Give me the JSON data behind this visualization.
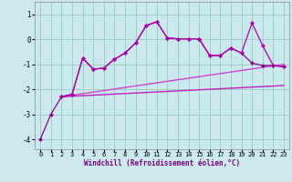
{
  "xlabel": "Windchill (Refroidissement éolien,°C)",
  "xlim": [
    -0.5,
    23.5
  ],
  "ylim": [
    -4.4,
    1.5
  ],
  "xticks": [
    0,
    1,
    2,
    3,
    4,
    5,
    6,
    7,
    8,
    9,
    10,
    11,
    12,
    13,
    14,
    15,
    16,
    17,
    18,
    19,
    20,
    21,
    22,
    23
  ],
  "yticks": [
    -4,
    -3,
    -2,
    -1,
    0,
    1
  ],
  "bg_color": "#cde9f0",
  "grid_color": "#99ccbb",
  "lc1": "#880088",
  "lc2": "#aa00aa",
  "lc3": "#cc44cc",
  "lc4": "#bb22bb",
  "s1x": [
    0,
    1,
    2,
    3,
    4,
    5,
    6,
    7,
    8,
    9,
    10,
    11,
    12,
    13,
    14,
    15,
    16,
    17,
    18,
    19,
    20,
    21,
    22,
    23
  ],
  "s1y": [
    -4.0,
    -3.0,
    -2.3,
    -2.2,
    -0.75,
    -1.2,
    -1.15,
    -0.8,
    -0.55,
    -0.15,
    0.55,
    0.7,
    0.05,
    0.02,
    0.02,
    0.02,
    -0.65,
    -0.65,
    -0.35,
    -0.55,
    -0.95,
    -1.05,
    -1.05,
    -1.1
  ],
  "s2x": [
    2,
    3,
    4,
    5,
    6,
    7,
    8,
    9,
    10,
    11,
    12,
    13,
    14,
    15,
    16,
    17,
    18,
    19,
    20,
    21,
    22,
    23
  ],
  "s2y": [
    -2.3,
    -2.2,
    -0.75,
    -1.2,
    -1.15,
    -0.8,
    -0.55,
    -0.15,
    0.55,
    0.7,
    0.05,
    0.02,
    0.02,
    0.02,
    -0.65,
    -0.65,
    -0.35,
    -0.55,
    0.65,
    -0.25,
    -1.05,
    -1.1
  ],
  "trend1x": [
    2,
    23
  ],
  "trend1y": [
    -2.3,
    -1.0
  ],
  "trend2x": [
    2,
    23
  ],
  "trend2y": [
    -2.3,
    -1.85
  ],
  "xlabel_color": "#770077",
  "xlabel_fontsize": 5.5,
  "tick_fontsize": 5.0,
  "marker_size": 2.5
}
